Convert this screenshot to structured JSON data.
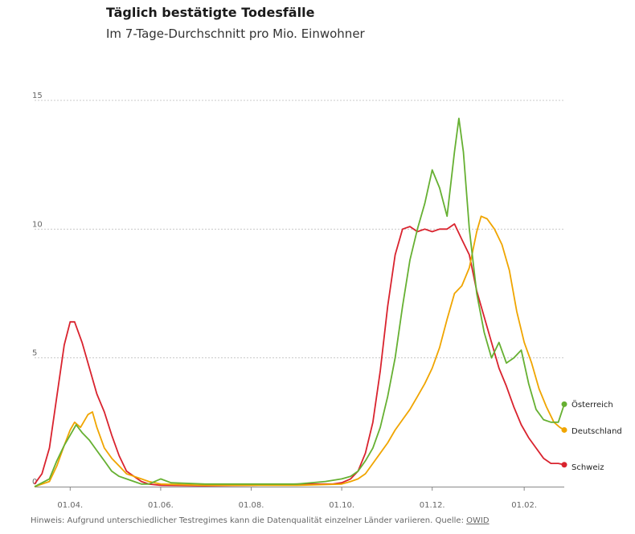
{
  "header": {
    "title": "Täglich bestätigte Todesfälle",
    "subtitle": "Im 7-Tage-Durchschnitt pro Mio. Einwohner"
  },
  "footer": {
    "note": "Hinweis: Aufgrund unterschiedlicher Testregimes kann die Datenqualität einzelner Länder variieren. Quelle: ",
    "source_link": "OWID"
  },
  "colors": {
    "grid": "#c8c8c8",
    "axis": "#888888"
  },
  "chart_data": {
    "type": "line",
    "title": "Täglich bestätigte Todesfälle",
    "subtitle": "Im 7-Tage-Durchschnitt pro Mio. Einwohner",
    "x_tick_labels": [
      "01.04.",
      "01.06.",
      "01.08.",
      "01.10.",
      "01.12.",
      "01.02."
    ],
    "x_tick_dates": [
      "2020-04-01",
      "2020-06-01",
      "2020-08-01",
      "2020-10-01",
      "2020-12-01",
      "2021-02-01"
    ],
    "xlim": [
      "2020-03-08",
      "2021-02-28"
    ],
    "y_tick_labels": [
      "0",
      "5",
      "10",
      "15"
    ],
    "ylim": [
      0,
      15
    ],
    "grid": true,
    "legend": "right, labels at line ends",
    "series": [
      {
        "name": "Schweiz",
        "color": "#d9232e",
        "points": [
          [
            "2020-03-08",
            0.1
          ],
          [
            "2020-03-13",
            0.5
          ],
          [
            "2020-03-18",
            1.5
          ],
          [
            "2020-03-23",
            3.5
          ],
          [
            "2020-03-28",
            5.5
          ],
          [
            "2020-04-01",
            6.4
          ],
          [
            "2020-04-04",
            6.4
          ],
          [
            "2020-04-09",
            5.6
          ],
          [
            "2020-04-14",
            4.6
          ],
          [
            "2020-04-19",
            3.6
          ],
          [
            "2020-04-24",
            2.9
          ],
          [
            "2020-04-29",
            2.0
          ],
          [
            "2020-05-04",
            1.2
          ],
          [
            "2020-05-09",
            0.6
          ],
          [
            "2020-05-14",
            0.4
          ],
          [
            "2020-05-19",
            0.2
          ],
          [
            "2020-05-24",
            0.1
          ],
          [
            "2020-06-01",
            0.05
          ],
          [
            "2020-07-01",
            0.03
          ],
          [
            "2020-08-01",
            0.05
          ],
          [
            "2020-09-01",
            0.1
          ],
          [
            "2020-09-25",
            0.1
          ],
          [
            "2020-10-01",
            0.15
          ],
          [
            "2020-10-07",
            0.3
          ],
          [
            "2020-10-12",
            0.6
          ],
          [
            "2020-10-17",
            1.3
          ],
          [
            "2020-10-22",
            2.5
          ],
          [
            "2020-10-27",
            4.5
          ],
          [
            "2020-11-01",
            7.0
          ],
          [
            "2020-11-06",
            9.0
          ],
          [
            "2020-11-11",
            10.0
          ],
          [
            "2020-11-16",
            10.1
          ],
          [
            "2020-11-21",
            9.9
          ],
          [
            "2020-11-26",
            10.0
          ],
          [
            "2020-12-01",
            9.9
          ],
          [
            "2020-12-06",
            10.0
          ],
          [
            "2020-12-11",
            10.0
          ],
          [
            "2020-12-16",
            10.2
          ],
          [
            "2020-12-21",
            9.6
          ],
          [
            "2020-12-26",
            9.0
          ],
          [
            "2020-12-31",
            7.6
          ],
          [
            "2021-01-05",
            6.6
          ],
          [
            "2021-01-10",
            5.6
          ],
          [
            "2021-01-15",
            4.6
          ],
          [
            "2021-01-20",
            3.9
          ],
          [
            "2021-01-25",
            3.1
          ],
          [
            "2021-01-30",
            2.4
          ],
          [
            "2021-02-04",
            1.9
          ],
          [
            "2021-02-09",
            1.5
          ],
          [
            "2021-02-14",
            1.1
          ],
          [
            "2021-02-19",
            0.9
          ],
          [
            "2021-02-24",
            0.9
          ],
          [
            "2021-02-28",
            0.85
          ]
        ]
      },
      {
        "name": "Deutschland",
        "color": "#f0a500",
        "points": [
          [
            "2020-03-08",
            0.0
          ],
          [
            "2020-03-18",
            0.2
          ],
          [
            "2020-03-23",
            0.8
          ],
          [
            "2020-03-28",
            1.6
          ],
          [
            "2020-04-01",
            2.2
          ],
          [
            "2020-04-04",
            2.5
          ],
          [
            "2020-04-08",
            2.3
          ],
          [
            "2020-04-13",
            2.8
          ],
          [
            "2020-04-16",
            2.9
          ],
          [
            "2020-04-19",
            2.3
          ],
          [
            "2020-04-24",
            1.5
          ],
          [
            "2020-04-29",
            1.1
          ],
          [
            "2020-05-04",
            0.8
          ],
          [
            "2020-05-09",
            0.5
          ],
          [
            "2020-05-14",
            0.4
          ],
          [
            "2020-05-19",
            0.3
          ],
          [
            "2020-05-24",
            0.2
          ],
          [
            "2020-06-01",
            0.1
          ],
          [
            "2020-07-01",
            0.05
          ],
          [
            "2020-08-01",
            0.05
          ],
          [
            "2020-09-01",
            0.05
          ],
          [
            "2020-10-01",
            0.1
          ],
          [
            "2020-10-07",
            0.2
          ],
          [
            "2020-10-12",
            0.3
          ],
          [
            "2020-10-17",
            0.5
          ],
          [
            "2020-10-22",
            0.9
          ],
          [
            "2020-10-27",
            1.3
          ],
          [
            "2020-11-01",
            1.7
          ],
          [
            "2020-11-06",
            2.2
          ],
          [
            "2020-11-11",
            2.6
          ],
          [
            "2020-11-16",
            3.0
          ],
          [
            "2020-11-21",
            3.5
          ],
          [
            "2020-11-26",
            4.0
          ],
          [
            "2020-12-01",
            4.6
          ],
          [
            "2020-12-06",
            5.4
          ],
          [
            "2020-12-11",
            6.5
          ],
          [
            "2020-12-16",
            7.5
          ],
          [
            "2020-12-21",
            7.8
          ],
          [
            "2020-12-26",
            8.5
          ],
          [
            "2020-12-31",
            9.9
          ],
          [
            "2021-01-03",
            10.5
          ],
          [
            "2021-01-07",
            10.4
          ],
          [
            "2021-01-12",
            10.0
          ],
          [
            "2021-01-17",
            9.4
          ],
          [
            "2021-01-22",
            8.4
          ],
          [
            "2021-01-27",
            6.8
          ],
          [
            "2021-02-01",
            5.6
          ],
          [
            "2021-02-06",
            4.8
          ],
          [
            "2021-02-11",
            3.8
          ],
          [
            "2021-02-16",
            3.1
          ],
          [
            "2021-02-21",
            2.5
          ],
          [
            "2021-02-25",
            2.3
          ],
          [
            "2021-02-28",
            2.2
          ]
        ]
      },
      {
        "name": "Österreich",
        "color": "#66b032",
        "points": [
          [
            "2020-03-08",
            0.0
          ],
          [
            "2020-03-18",
            0.3
          ],
          [
            "2020-03-23",
            1.0
          ],
          [
            "2020-03-28",
            1.6
          ],
          [
            "2020-04-01",
            2.0
          ],
          [
            "2020-04-05",
            2.4
          ],
          [
            "2020-04-09",
            2.1
          ],
          [
            "2020-04-14",
            1.8
          ],
          [
            "2020-04-19",
            1.4
          ],
          [
            "2020-04-24",
            1.0
          ],
          [
            "2020-04-29",
            0.6
          ],
          [
            "2020-05-04",
            0.4
          ],
          [
            "2020-05-09",
            0.3
          ],
          [
            "2020-05-14",
            0.2
          ],
          [
            "2020-05-19",
            0.1
          ],
          [
            "2020-05-24",
            0.1
          ],
          [
            "2020-06-01",
            0.3
          ],
          [
            "2020-06-08",
            0.15
          ],
          [
            "2020-07-01",
            0.1
          ],
          [
            "2020-08-01",
            0.1
          ],
          [
            "2020-09-01",
            0.1
          ],
          [
            "2020-09-20",
            0.2
          ],
          [
            "2020-10-01",
            0.3
          ],
          [
            "2020-10-07",
            0.4
          ],
          [
            "2020-10-12",
            0.6
          ],
          [
            "2020-10-17",
            1.0
          ],
          [
            "2020-10-22",
            1.5
          ],
          [
            "2020-10-27",
            2.3
          ],
          [
            "2020-11-01",
            3.5
          ],
          [
            "2020-11-06",
            5.0
          ],
          [
            "2020-11-11",
            7.0
          ],
          [
            "2020-11-16",
            8.8
          ],
          [
            "2020-11-21",
            10.0
          ],
          [
            "2020-11-26",
            11.0
          ],
          [
            "2020-12-01",
            12.3
          ],
          [
            "2020-12-06",
            11.6
          ],
          [
            "2020-12-11",
            10.5
          ],
          [
            "2020-12-16",
            13.0
          ],
          [
            "2020-12-19",
            14.3
          ],
          [
            "2020-12-22",
            13.0
          ],
          [
            "2020-12-26",
            10.0
          ],
          [
            "2020-12-31",
            7.5
          ],
          [
            "2021-01-05",
            6.0
          ],
          [
            "2021-01-10",
            5.0
          ],
          [
            "2021-01-15",
            5.6
          ],
          [
            "2021-01-20",
            4.8
          ],
          [
            "2021-01-25",
            5.0
          ],
          [
            "2021-01-30",
            5.3
          ],
          [
            "2021-02-04",
            4.0
          ],
          [
            "2021-02-09",
            3.0
          ],
          [
            "2021-02-14",
            2.6
          ],
          [
            "2021-02-19",
            2.5
          ],
          [
            "2021-02-24",
            2.5
          ],
          [
            "2021-02-28",
            3.2
          ]
        ]
      }
    ]
  }
}
